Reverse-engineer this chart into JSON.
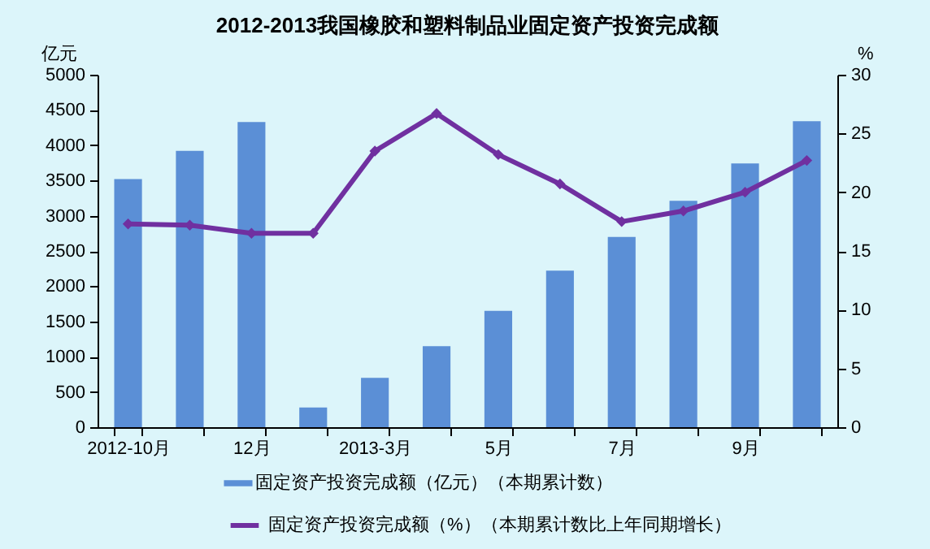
{
  "chart_data": {
    "type": "bar",
    "title": "2012-2013我国橡胶和塑料制品业固定资产投资完成额",
    "ylabel": "亿元",
    "y2label": "%",
    "categories": [
      "2012-10月",
      null,
      "12月",
      null,
      "2013-3月",
      null,
      "5月",
      null,
      "7月",
      null,
      "9月",
      null
    ],
    "series": [
      {
        "name": "固定资产投资完成额（亿元）（本期累计数）",
        "color": "#5b8fd6",
        "values": [
          3520,
          3920,
          4330,
          280,
          700,
          1150,
          1650,
          2220,
          2700,
          3210,
          3740,
          4340
        ]
      },
      {
        "name": "固定资产投资完成额（%）（本期累计数比上年同期增长）",
        "type": "line",
        "axis": "y2",
        "color": "#7030a0",
        "values": [
          17.3,
          17.2,
          16.5,
          16.5,
          23.5,
          26.7,
          23.2,
          20.7,
          17.5,
          18.4,
          20.0,
          22.7
        ]
      }
    ],
    "ylim": [
      0,
      5000
    ],
    "yticks": [
      0,
      500,
      1000,
      1500,
      2000,
      2500,
      3000,
      3500,
      4000,
      4500,
      5000
    ],
    "y2lim": [
      0,
      30
    ],
    "y2ticks": [
      0,
      5,
      10,
      15,
      20,
      25,
      30
    ],
    "grid": false,
    "legend": "bottom",
    "marker": "diamond",
    "line_style": "solid"
  }
}
